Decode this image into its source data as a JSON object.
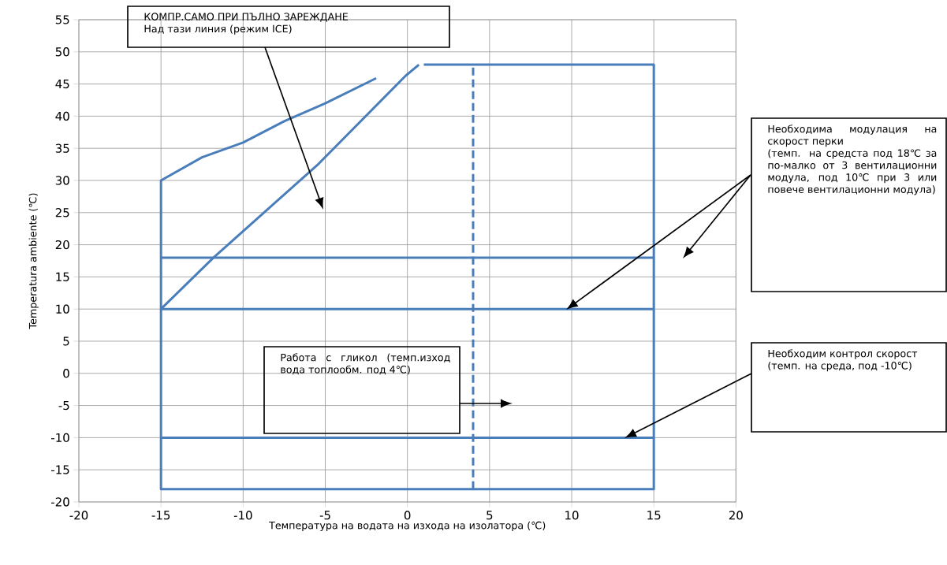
{
  "chart_data": {
    "type": "line",
    "xlabel": "Температура на водата на изхода на изолатора (℃)",
    "ylabel": "Temperatura ambiente (℃)",
    "xlim": [
      -20,
      20
    ],
    "ylim": [
      -20,
      55
    ],
    "xticks": [
      -20,
      -15,
      -10,
      -5,
      0,
      5,
      10,
      15,
      20
    ],
    "yticks": [
      -20,
      -15,
      -10,
      -5,
      0,
      5,
      10,
      15,
      20,
      25,
      30,
      35,
      40,
      45,
      50,
      55
    ],
    "grid": true,
    "marker": "none",
    "series": [
      {
        "color": "#4a7ebb",
        "x": [
          1,
          15,
          15,
          -15,
          -15,
          -12.5,
          -10,
          -7.5,
          -5,
          -1.9
        ],
        "values": [
          48,
          48,
          -18,
          -18,
          30,
          33.6,
          35.9,
          39.2,
          42,
          45.9
        ]
      },
      {
        "color": "#4a7ebb",
        "x": [
          -15,
          -11.8,
          -5.4,
          -0.1,
          0.7
        ],
        "values": [
          10,
          18,
          32.6,
          46.3,
          48
        ]
      },
      {
        "color": "#4a7ebb",
        "x": [
          -15,
          15
        ],
        "values": [
          18,
          18
        ]
      },
      {
        "color": "#4a7ebb",
        "x": [
          -15,
          15
        ],
        "values": [
          10,
          10
        ]
      },
      {
        "color": "#4a7ebb",
        "x": [
          -15,
          15
        ],
        "values": [
          -10,
          -10
        ]
      },
      {
        "color": "#4a7ebb",
        "x": [
          4,
          4
        ],
        "values": [
          -18,
          48
        ],
        "line_style": "dashed"
      }
    ],
    "annotations": [
      "КОМПР.САМО ПРИ ПЪЛНО ЗАРЕЖДАНЕ",
      "Над тази линия (режим ICE)",
      "Необходима модулация на скорост перки",
      "(темп. на средста под 18℃ за по-малко от 3 вентилационни модула, под 10℃ при 3 или повече вентилационни модула)",
      "Работа с гликол (темп.изход вода топлообм. под 4℃)",
      "Необходим контрол скорост",
      "(темп. на среда, под -10℃)"
    ]
  }
}
